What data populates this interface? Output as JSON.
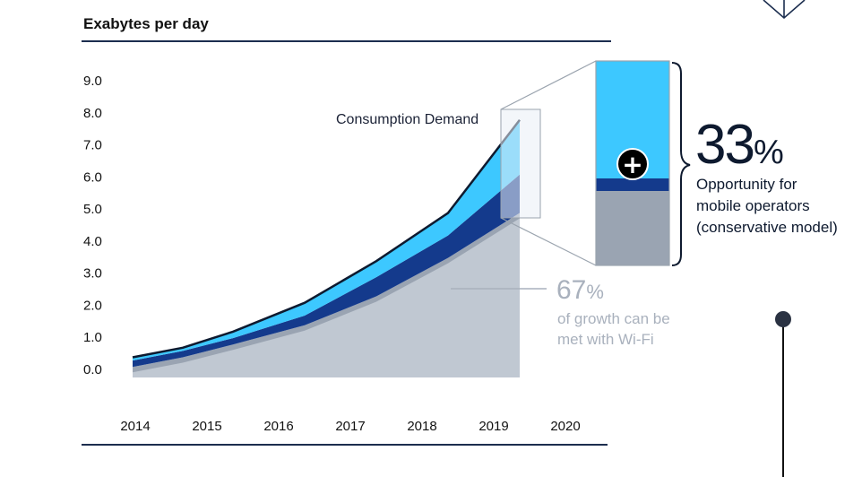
{
  "chart_data": {
    "type": "area",
    "title": "Exabytes per day",
    "xlabel": "",
    "ylabel": "",
    "x_ticks": [
      "2014",
      "2015",
      "2016",
      "2017",
      "2018",
      "2019",
      "2020"
    ],
    "y_ticks": [
      "0.0",
      "1.0",
      "2.0",
      "3.0",
      "4.0",
      "5.0",
      "6.0",
      "7.0",
      "8.0",
      "9.0"
    ],
    "ylim": [
      0,
      9
    ],
    "x": [
      2014,
      2014.7,
      2015.4,
      2016.4,
      2017.4,
      2018.4,
      2019.4
    ],
    "series": [
      {
        "name": "Consumption Demand",
        "values": [
          0.6,
          0.9,
          1.4,
          2.3,
          3.6,
          5.1,
          8.0
        ],
        "color": "#3dc8ff"
      },
      {
        "name": "",
        "values": [
          0.5,
          0.8,
          1.2,
          1.9,
          3.1,
          4.4,
          6.3
        ],
        "color": "#143a8c"
      },
      {
        "name": "",
        "values": [
          0.3,
          0.6,
          1.0,
          1.6,
          2.5,
          3.7,
          5.1
        ],
        "color": "#c0c8d2"
      }
    ],
    "annotations": {
      "consumption_label": "Consumption Demand",
      "opportunity_value": "33",
      "opportunity_unit": "%",
      "opportunity_lines": [
        "Opportunity for",
        "mobile operators",
        "(conservative model)"
      ],
      "wifi_value": "67",
      "wifi_unit": "%",
      "wifi_lines": [
        "of growth can be",
        "met with Wi-Fi"
      ],
      "plus_symbol": "+"
    },
    "legend": "none",
    "grid": false
  },
  "colors": {
    "wifi_area": "#c0c8d2",
    "wifi_shadow": "#9aa4b2",
    "mobile_band": "#3dc8ff",
    "dark_band": "#143a8c",
    "outline": "#0e1a2f",
    "rule": "#1c2e4f",
    "zoom_box": "#e9eef5",
    "zoom_lines": "#9aa3ae"
  },
  "icons": {
    "plus": "plus-circle-icon",
    "node": "timeline-node-icon",
    "diamond": "diamond-outline-icon"
  }
}
